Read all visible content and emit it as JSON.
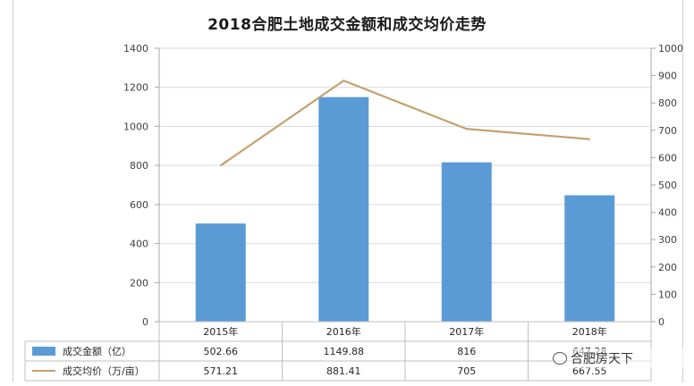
{
  "chart_data": {
    "type": "bar",
    "title": "2018合肥土地成交金额和成交均价走势",
    "categories": [
      "2015年",
      "2016年",
      "2017年",
      "2018年"
    ],
    "series": [
      {
        "name": "成交金额（亿）",
        "type": "bar",
        "axis": "left",
        "values": [
          502.66,
          1149.88,
          816,
          647.28
        ],
        "value_labels": [
          "502.66",
          "1149.88",
          "816",
          "647.28"
        ],
        "color": "#5b9bd5"
      },
      {
        "name": "成交均价（万/亩）",
        "type": "line",
        "axis": "right",
        "values": [
          571.21,
          881.41,
          705,
          667.55
        ],
        "value_labels": [
          "571.21",
          "881.41",
          "705",
          "667.55"
        ],
        "color": "#c5a06e"
      }
    ],
    "y_left": {
      "ylim": [
        0,
        1400
      ],
      "ticks": [
        "0",
        "200",
        "400",
        "600",
        "800",
        "1000",
        "1200",
        "1400"
      ]
    },
    "y_right": {
      "ylim": [
        0,
        1000
      ],
      "ticks": [
        "0",
        "100",
        "200",
        "300",
        "400",
        "500",
        "600",
        "700",
        "800",
        "900",
        "1000"
      ]
    },
    "grid": true,
    "legend": "data-table-bottom"
  },
  "watermark": {
    "text": "合肥房天下",
    "icon": "wechat-icon"
  }
}
